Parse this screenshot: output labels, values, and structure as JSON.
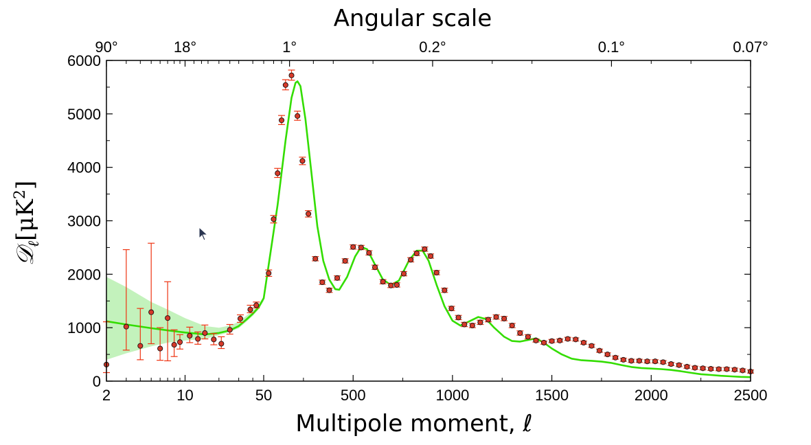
{
  "chart_data": {
    "type": "scatter",
    "top_axis_title": "Angular scale",
    "top_tick_labels": [
      {
        "label": "90°",
        "ell": 2
      },
      {
        "label": "18°",
        "ell": 10
      },
      {
        "label": "1°",
        "ell": 180
      },
      {
        "label": "0.2°",
        "ell": 900
      },
      {
        "label": "0.1°",
        "ell": 1800
      },
      {
        "label": "0.07°",
        "ell": 2500
      }
    ],
    "xlabel": "Multipole moment, ℓ",
    "ylabel_main": "𝒟",
    "ylabel_sub": "ℓ",
    "ylabel_unit": "[μK",
    "ylabel_sup": "2",
    "ylabel_close": "]",
    "x_scale": "hybrid: log for ℓ<50, linear for ℓ≥50",
    "x_ticks": [
      {
        "value": 2,
        "label": "2"
      },
      {
        "value": 10,
        "label": "10"
      },
      {
        "value": 50,
        "label": "50"
      },
      {
        "value": 500,
        "label": "500"
      },
      {
        "value": 1000,
        "label": "1000"
      },
      {
        "value": 1500,
        "label": "1500"
      },
      {
        "value": 2000,
        "label": "2000"
      },
      {
        "value": 2500,
        "label": "2500"
      }
    ],
    "y_ticks": [
      "0",
      "1000",
      "2000",
      "3000",
      "4000",
      "5000",
      "6000"
    ],
    "xlim": [
      2,
      2500
    ],
    "ylim": [
      0,
      6000
    ],
    "grid": false,
    "colors": {
      "model_line": "#33dd00",
      "variance_band": "#b8f0b0",
      "error_bar": "#ee3311",
      "marker_fill": "#d63a2a",
      "marker_edge": "#111111"
    },
    "model_curve": [
      [
        2,
        1120
      ],
      [
        3,
        1060
      ],
      [
        5,
        990
      ],
      [
        7,
        950
      ],
      [
        10,
        910
      ],
      [
        15,
        875
      ],
      [
        20,
        900
      ],
      [
        25,
        950
      ],
      [
        30,
        1030
      ],
      [
        35,
        1150
      ],
      [
        40,
        1260
      ],
      [
        45,
        1380
      ],
      [
        50,
        1550
      ],
      [
        80,
        2300
      ],
      [
        120,
        3300
      ],
      [
        160,
        4500
      ],
      [
        190,
        5300
      ],
      [
        210,
        5580
      ],
      [
        220,
        5610
      ],
      [
        235,
        5520
      ],
      [
        260,
        4900
      ],
      [
        290,
        3900
      ],
      [
        320,
        2900
      ],
      [
        350,
        2250
      ],
      [
        380,
        1900
      ],
      [
        410,
        1720
      ],
      [
        430,
        1710
      ],
      [
        470,
        1950
      ],
      [
        510,
        2330
      ],
      [
        540,
        2510
      ],
      [
        570,
        2470
      ],
      [
        610,
        2180
      ],
      [
        650,
        1900
      ],
      [
        690,
        1800
      ],
      [
        730,
        1880
      ],
      [
        780,
        2250
      ],
      [
        820,
        2440
      ],
      [
        850,
        2440
      ],
      [
        880,
        2250
      ],
      [
        920,
        1800
      ],
      [
        960,
        1400
      ],
      [
        1000,
        1130
      ],
      [
        1040,
        1040
      ],
      [
        1080,
        1110
      ],
      [
        1130,
        1200
      ],
      [
        1170,
        1160
      ],
      [
        1210,
        1000
      ],
      [
        1260,
        830
      ],
      [
        1300,
        750
      ],
      [
        1340,
        740
      ],
      [
        1380,
        770
      ],
      [
        1420,
        800
      ],
      [
        1460,
        720
      ],
      [
        1500,
        610
      ],
      [
        1550,
        500
      ],
      [
        1600,
        420
      ],
      [
        1650,
        390
      ],
      [
        1700,
        380
      ],
      [
        1750,
        365
      ],
      [
        1800,
        340
      ],
      [
        1850,
        300
      ],
      [
        1900,
        265
      ],
      [
        1950,
        245
      ],
      [
        2000,
        235
      ],
      [
        2050,
        225
      ],
      [
        2100,
        210
      ],
      [
        2150,
        185
      ],
      [
        2200,
        155
      ],
      [
        2250,
        130
      ],
      [
        2300,
        115
      ],
      [
        2350,
        100
      ],
      [
        2400,
        90
      ],
      [
        2450,
        80
      ],
      [
        2500,
        75
      ]
    ],
    "variance_band": [
      [
        2,
        400,
        1950
      ],
      [
        3,
        520,
        1760
      ],
      [
        5,
        650,
        1480
      ],
      [
        7,
        720,
        1340
      ],
      [
        10,
        760,
        1180
      ],
      [
        15,
        790,
        1030
      ],
      [
        20,
        860,
        1000
      ],
      [
        25,
        920,
        1040
      ],
      [
        30,
        990,
        1110
      ],
      [
        35,
        1110,
        1220
      ],
      [
        40,
        1220,
        1320
      ],
      [
        45,
        1340,
        1430
      ],
      [
        50,
        1500,
        1590
      ]
    ],
    "points": [
      [
        2,
        310,
        160,
        1110
      ],
      [
        3,
        1020,
        580,
        2460
      ],
      [
        4,
        660,
        400,
        1360
      ],
      [
        5,
        1290,
        700,
        2580
      ],
      [
        6,
        610,
        390,
        1000
      ],
      [
        7,
        1180,
        380,
        1860
      ],
      [
        8,
        680,
        460,
        960
      ],
      [
        9,
        730,
        600,
        870
      ],
      [
        11,
        850,
        720,
        1010
      ],
      [
        13,
        790,
        690,
        920
      ],
      [
        15,
        900,
        790,
        1050
      ],
      [
        18,
        780,
        680,
        890
      ],
      [
        21,
        700,
        610,
        830
      ],
      [
        25,
        960,
        880,
        1060
      ],
      [
        31,
        1170,
        1100,
        1240
      ],
      [
        38,
        1340,
        1280,
        1420
      ],
      [
        43,
        1420,
        1370,
        1480
      ],
      [
        75,
        2020,
        1960,
        2080
      ],
      [
        100,
        3030,
        2960,
        3100
      ],
      [
        120,
        3890,
        3810,
        3980
      ],
      [
        140,
        4880,
        4800,
        4970
      ],
      [
        160,
        5540,
        5450,
        5640
      ],
      [
        190,
        5720,
        5630,
        5820
      ],
      [
        220,
        4960,
        4880,
        5050
      ],
      [
        245,
        4120,
        4050,
        4190
      ],
      [
        275,
        3130,
        3070,
        3190
      ],
      [
        310,
        2290,
        2250,
        2330
      ],
      [
        345,
        1850,
        1810,
        1890
      ],
      [
        380,
        1700,
        1660,
        1740
      ],
      [
        420,
        1930,
        1890,
        1970
      ],
      [
        460,
        2250,
        2210,
        2290
      ],
      [
        500,
        2510,
        2470,
        2550
      ],
      [
        540,
        2500,
        2460,
        2540
      ],
      [
        580,
        2400,
        2360,
        2440
      ],
      [
        610,
        2130,
        2090,
        2170
      ],
      [
        650,
        1860,
        1820,
        1900
      ],
      [
        690,
        1790,
        1750,
        1830
      ],
      [
        720,
        1800,
        1760,
        1840
      ],
      [
        755,
        2010,
        1970,
        2050
      ],
      [
        790,
        2270,
        2230,
        2310
      ],
      [
        820,
        2390,
        2350,
        2430
      ],
      [
        860,
        2470,
        2430,
        2510
      ],
      [
        890,
        2340,
        2300,
        2380
      ],
      [
        920,
        2030,
        1990,
        2070
      ],
      [
        960,
        1700,
        1660,
        1740
      ],
      [
        995,
        1360,
        1320,
        1400
      ],
      [
        1030,
        1190,
        1150,
        1230
      ],
      [
        1060,
        1060,
        1020,
        1100
      ],
      [
        1100,
        1040,
        1000,
        1080
      ],
      [
        1140,
        1100,
        1060,
        1140
      ],
      [
        1180,
        1150,
        1110,
        1190
      ],
      [
        1220,
        1200,
        1160,
        1240
      ],
      [
        1260,
        1170,
        1130,
        1210
      ],
      [
        1300,
        1040,
        1000,
        1080
      ],
      [
        1340,
        900,
        860,
        940
      ],
      [
        1380,
        830,
        790,
        870
      ],
      [
        1420,
        760,
        730,
        790
      ],
      [
        1460,
        720,
        690,
        750
      ],
      [
        1500,
        750,
        720,
        780
      ],
      [
        1540,
        760,
        730,
        790
      ],
      [
        1580,
        790,
        760,
        820
      ],
      [
        1620,
        780,
        750,
        810
      ],
      [
        1660,
        720,
        690,
        750
      ],
      [
        1700,
        660,
        630,
        690
      ],
      [
        1740,
        570,
        540,
        600
      ],
      [
        1780,
        500,
        470,
        530
      ],
      [
        1820,
        440,
        410,
        470
      ],
      [
        1860,
        400,
        370,
        430
      ],
      [
        1900,
        380,
        350,
        410
      ],
      [
        1940,
        380,
        350,
        410
      ],
      [
        1980,
        370,
        340,
        400
      ],
      [
        2020,
        370,
        340,
        400
      ],
      [
        2060,
        355,
        325,
        385
      ],
      [
        2100,
        320,
        290,
        350
      ],
      [
        2140,
        300,
        270,
        330
      ],
      [
        2180,
        270,
        240,
        300
      ],
      [
        2220,
        250,
        220,
        280
      ],
      [
        2260,
        240,
        210,
        270
      ],
      [
        2300,
        230,
        200,
        260
      ],
      [
        2340,
        225,
        195,
        255
      ],
      [
        2380,
        225,
        195,
        255
      ],
      [
        2420,
        215,
        185,
        245
      ],
      [
        2460,
        200,
        170,
        230
      ],
      [
        2500,
        180,
        150,
        210
      ]
    ]
  }
}
